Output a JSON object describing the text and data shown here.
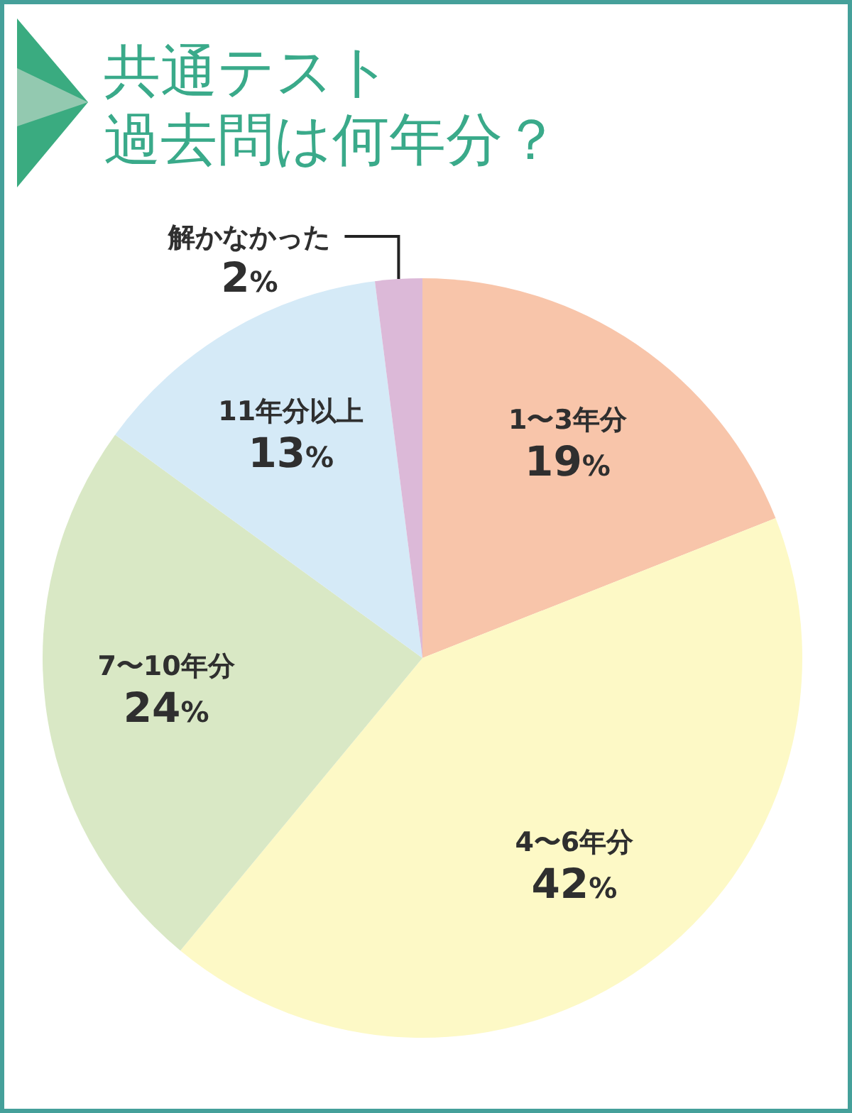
{
  "chart_data": {
    "type": "pie",
    "title": "共通テスト",
    "subtitle": "過去問は何年分？",
    "categories": [
      "1〜3年分",
      "4〜6年分",
      "7〜10年分",
      "11年分以上",
      "解かなかった"
    ],
    "values": [
      19,
      42,
      24,
      13,
      2
    ],
    "colors": [
      "#f8c5aa",
      "#fdf9c6",
      "#d9e8c5",
      "#d5eaf7",
      "#dcb9d8"
    ],
    "value_labels": [
      "19%",
      "42%",
      "24%",
      "13%",
      "2%"
    ]
  }
}
